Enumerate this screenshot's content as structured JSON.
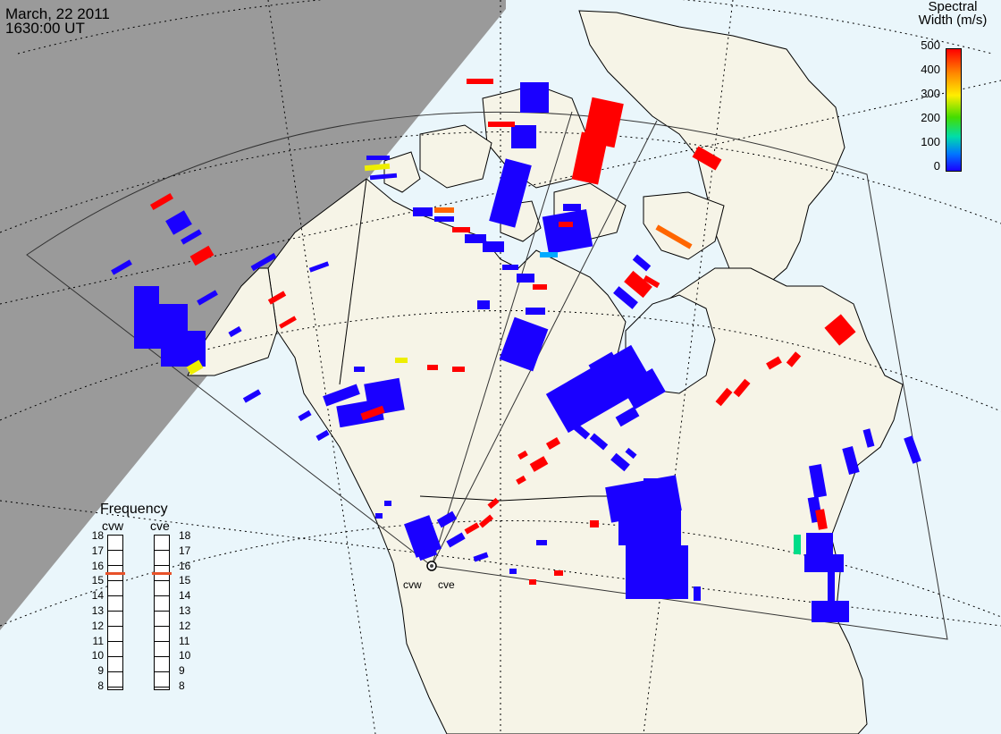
{
  "header": {
    "date": "March, 22 2011",
    "time": "1630:00 UT"
  },
  "colorbar": {
    "title_line1": "Spectral",
    "title_line2": "Width (m/s)",
    "ticks": [
      "500",
      "400",
      "300",
      "200",
      "100",
      "0"
    ]
  },
  "frequency": {
    "title": "Frequency",
    "radars": [
      "cvw",
      "cve"
    ],
    "scale": [
      "18",
      "17",
      "16",
      "15",
      "14",
      "13",
      "12",
      "11",
      "10",
      "9",
      "8"
    ],
    "cvw_mhz": 15.5,
    "cve_mhz": 15.5
  },
  "sites": [
    "cvw",
    "cve"
  ],
  "colors": {
    "blue": "#1a00ff",
    "red": "#ff0000",
    "orange": "#ff6600",
    "yellow": "#eeee00",
    "cyan": "#00aaff",
    "green": "#00dd88",
    "night": "#9a9a9a",
    "ocean": "#eaf6fb",
    "land": "#f6f4e7"
  }
}
